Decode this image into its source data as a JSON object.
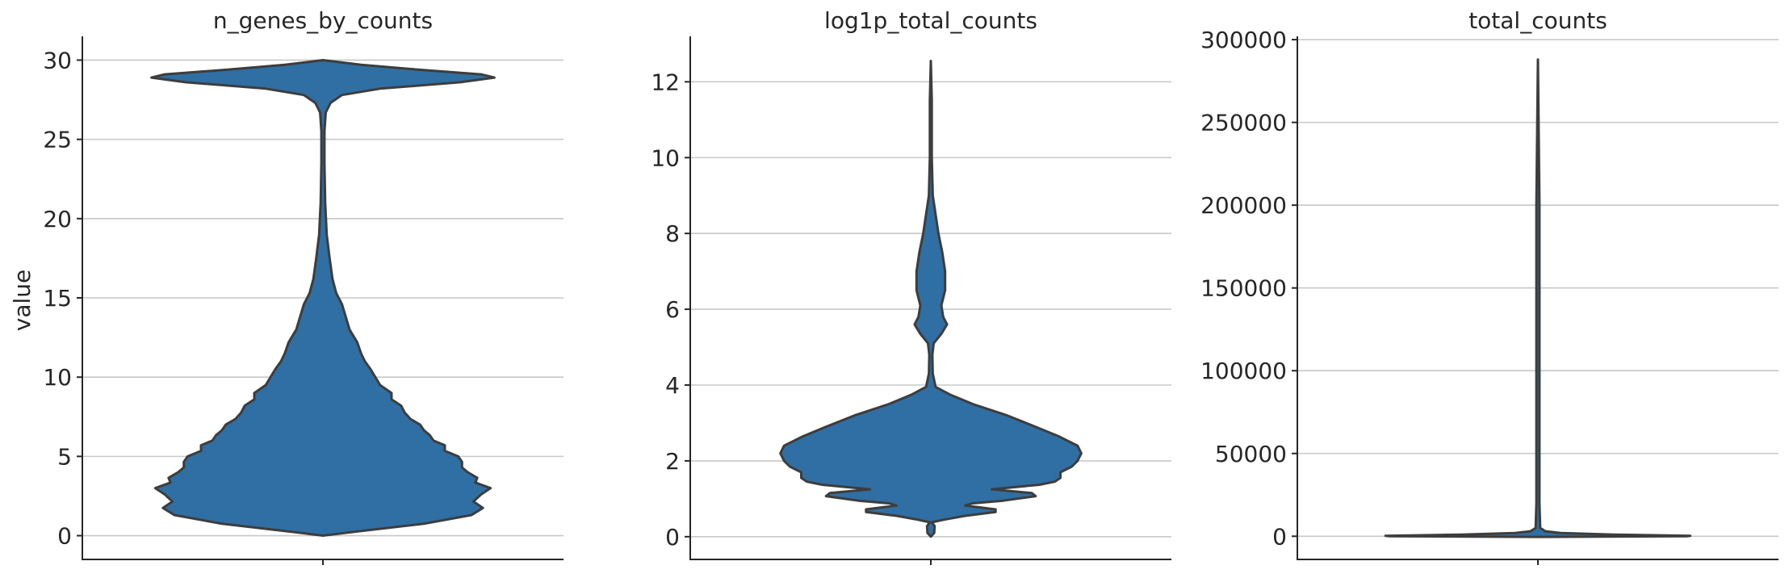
{
  "figure": {
    "ylabel": "value"
  },
  "colors": {
    "violin_fill": "#2f6fa3",
    "violin_edge": "#3d3d3d",
    "grid": "#c8c8c8",
    "axis": "#262626"
  },
  "chart_data": [
    {
      "type": "violin",
      "title": "n_genes_by_counts",
      "xlabel": "",
      "ylabel": "value",
      "ylim": [
        -1.5,
        31.5
      ],
      "yticks": [
        0,
        5,
        10,
        15,
        20,
        25,
        30
      ],
      "ytick_labels": [
        "0",
        "5",
        "10",
        "15",
        "20",
        "25",
        "30"
      ],
      "grid": true,
      "profile": [
        [
          0,
          0.0
        ],
        [
          0.25,
          0.17
        ],
        [
          0.75,
          0.53
        ],
        [
          1.3,
          0.78
        ],
        [
          1.75,
          0.84
        ],
        [
          2.15,
          0.79
        ],
        [
          2.6,
          0.83
        ],
        [
          3.0,
          0.88
        ],
        [
          3.35,
          0.8
        ],
        [
          3.65,
          0.81
        ],
        [
          4.0,
          0.76
        ],
        [
          4.3,
          0.73
        ],
        [
          4.65,
          0.73
        ],
        [
          5.0,
          0.71
        ],
        [
          5.35,
          0.64
        ],
        [
          5.7,
          0.64
        ],
        [
          6.0,
          0.58
        ],
        [
          6.35,
          0.56
        ],
        [
          6.65,
          0.53
        ],
        [
          7.0,
          0.51
        ],
        [
          7.35,
          0.46
        ],
        [
          7.75,
          0.43
        ],
        [
          8.2,
          0.41
        ],
        [
          8.6,
          0.36
        ],
        [
          9.0,
          0.36
        ],
        [
          9.5,
          0.3
        ],
        [
          9.9,
          0.28
        ],
        [
          10.5,
          0.25
        ],
        [
          11.0,
          0.22
        ],
        [
          11.5,
          0.2
        ],
        [
          12.2,
          0.18
        ],
        [
          13.0,
          0.14
        ],
        [
          13.8,
          0.12
        ],
        [
          14.6,
          0.1
        ],
        [
          15.3,
          0.07
        ],
        [
          16.2,
          0.05
        ],
        [
          17.5,
          0.035
        ],
        [
          19.0,
          0.02
        ],
        [
          21.0,
          0.012
        ],
        [
          23.5,
          0.008
        ],
        [
          25.5,
          0.008
        ],
        [
          26.7,
          0.015
        ],
        [
          27.3,
          0.04
        ],
        [
          27.8,
          0.1
        ],
        [
          28.2,
          0.3
        ],
        [
          28.6,
          0.72
        ],
        [
          28.9,
          0.9
        ],
        [
          29.1,
          0.83
        ],
        [
          29.4,
          0.5
        ],
        [
          29.7,
          0.2
        ],
        [
          30.0,
          0.0
        ]
      ]
    },
    {
      "type": "violin",
      "title": "log1p_total_counts",
      "xlabel": "",
      "ylabel": "",
      "ylim": [
        -0.6,
        13.2
      ],
      "yticks": [
        0,
        2,
        4,
        6,
        8,
        10,
        12
      ],
      "ytick_labels": [
        "0",
        "2",
        "4",
        "6",
        "8",
        "10",
        "12"
      ],
      "grid": true,
      "profile": [
        [
          0.0,
          0.0
        ],
        [
          0.1,
          0.018
        ],
        [
          0.28,
          0.02
        ],
        [
          0.38,
          0.005
        ],
        [
          0.45,
          0.07
        ],
        [
          0.55,
          0.18
        ],
        [
          0.65,
          0.34
        ],
        [
          0.72,
          0.34
        ],
        [
          0.82,
          0.18
        ],
        [
          0.88,
          0.22
        ],
        [
          0.95,
          0.38
        ],
        [
          1.07,
          0.55
        ],
        [
          1.15,
          0.53
        ],
        [
          1.25,
          0.32
        ],
        [
          1.37,
          0.57
        ],
        [
          1.45,
          0.65
        ],
        [
          1.55,
          0.68
        ],
        [
          1.7,
          0.68
        ],
        [
          1.85,
          0.74
        ],
        [
          2.0,
          0.77
        ],
        [
          2.2,
          0.79
        ],
        [
          2.4,
          0.77
        ],
        [
          2.65,
          0.67
        ],
        [
          2.9,
          0.55
        ],
        [
          3.2,
          0.4
        ],
        [
          3.5,
          0.22
        ],
        [
          3.75,
          0.1
        ],
        [
          3.95,
          0.025
        ],
        [
          4.3,
          0.01
        ],
        [
          4.8,
          0.008
        ],
        [
          5.1,
          0.015
        ],
        [
          5.35,
          0.055
        ],
        [
          5.6,
          0.085
        ],
        [
          5.8,
          0.065
        ],
        [
          6.1,
          0.055
        ],
        [
          6.5,
          0.075
        ],
        [
          7.0,
          0.075
        ],
        [
          7.5,
          0.06
        ],
        [
          8.0,
          0.04
        ],
        [
          8.4,
          0.028
        ],
        [
          9.0,
          0.01
        ],
        [
          10.0,
          0.005
        ],
        [
          11.5,
          0.005
        ],
        [
          12.55,
          0.0
        ]
      ]
    },
    {
      "type": "violin",
      "title": "total_counts",
      "xlabel": "",
      "ylabel": "",
      "ylim": [
        -14000,
        302000
      ],
      "yticks": [
        0,
        50000,
        100000,
        150000,
        200000,
        250000,
        300000
      ],
      "ytick_labels": [
        "0",
        "50000",
        "100000",
        "150000",
        "200000",
        "250000",
        "300000"
      ],
      "grid": true,
      "profile": [
        [
          -400,
          0.0
        ],
        [
          0,
          0.78
        ],
        [
          300,
          0.8
        ],
        [
          1000,
          0.4
        ],
        [
          2000,
          0.12
        ],
        [
          3000,
          0.04
        ],
        [
          5000,
          0.012
        ],
        [
          20000,
          0.008
        ],
        [
          100000,
          0.008
        ],
        [
          200000,
          0.008
        ],
        [
          288000,
          0.0
        ]
      ]
    }
  ]
}
